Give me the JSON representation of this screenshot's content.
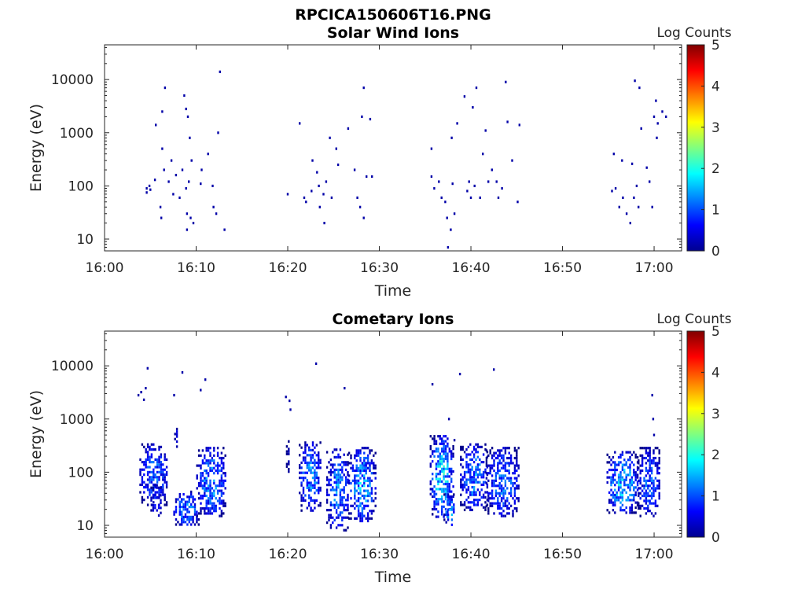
{
  "figure": {
    "title": "RPCICA150606T16.PNG"
  },
  "chart_data": [
    {
      "type": "heatmap",
      "title": "Solar Wind Ions",
      "xlabel": "Time",
      "ylabel": "Energy (eV)",
      "x_ticks": [
        "16:00",
        "16:10",
        "16:20",
        "16:30",
        "16:40",
        "16:50",
        "17:00"
      ],
      "y_scale": "log",
      "y_ticks": [
        "10",
        "100",
        "1000",
        "10000"
      ],
      "xlim_minutes": [
        0,
        63
      ],
      "ylim": [
        6,
        45000
      ],
      "colorbar": {
        "label": "Log Counts",
        "ticks": [
          "0",
          "1",
          "2",
          "3",
          "4",
          "5"
        ],
        "range": [
          0,
          5
        ],
        "colormap": "jet"
      },
      "points": [
        [
          4.6,
          90,
          0.2
        ],
        [
          4.6,
          75,
          0.2
        ],
        [
          4.9,
          100,
          0.2
        ],
        [
          5.0,
          85,
          0.2
        ],
        [
          5.5,
          130,
          0.2
        ],
        [
          5.6,
          1400,
          0.2
        ],
        [
          6.1,
          40,
          0.2
        ],
        [
          6.2,
          25,
          0.2
        ],
        [
          6.3,
          500,
          0.2
        ],
        [
          6.3,
          2500,
          0.2
        ],
        [
          6.6,
          7000,
          0.2
        ],
        [
          6.5,
          200,
          0.2
        ],
        [
          7.0,
          120,
          0.2
        ],
        [
          7.3,
          300,
          0.2
        ],
        [
          7.5,
          70,
          0.2
        ],
        [
          7.8,
          160,
          0.2
        ],
        [
          8.2,
          60,
          0.2
        ],
        [
          8.5,
          200,
          0.2
        ],
        [
          8.7,
          5000,
          0.2
        ],
        [
          8.9,
          2800,
          0.2
        ],
        [
          8.9,
          90,
          0.2
        ],
        [
          9.0,
          30,
          0.2
        ],
        [
          9.0,
          15,
          0.2
        ],
        [
          9.1,
          2000,
          0.2
        ],
        [
          9.2,
          120,
          0.2
        ],
        [
          9.3,
          800,
          0.2
        ],
        [
          9.5,
          300,
          0.2
        ],
        [
          9.4,
          25,
          0.2
        ],
        [
          9.7,
          20,
          0.2
        ],
        [
          10.6,
          200,
          0.2
        ],
        [
          10.5,
          110,
          0.2
        ],
        [
          11.3,
          400,
          0.2
        ],
        [
          11.8,
          100,
          0.2
        ],
        [
          11.9,
          40,
          0.2
        ],
        [
          12.2,
          30,
          0.2
        ],
        [
          12.4,
          1000,
          0.2
        ],
        [
          12.6,
          14000,
          0.2
        ],
        [
          13.1,
          15,
          0.2
        ],
        [
          20.0,
          70,
          0.2
        ],
        [
          21.3,
          1500,
          0.2
        ],
        [
          21.8,
          60,
          0.2
        ],
        [
          22.0,
          50,
          0.2
        ],
        [
          22.6,
          80,
          0.2
        ],
        [
          22.7,
          300,
          0.2
        ],
        [
          23.2,
          180,
          0.2
        ],
        [
          23.4,
          100,
          0.2
        ],
        [
          23.5,
          40,
          0.2
        ],
        [
          23.9,
          70,
          0.2
        ],
        [
          24.2,
          120,
          0.2
        ],
        [
          24.0,
          20,
          0.2
        ],
        [
          24.6,
          800,
          0.2
        ],
        [
          24.8,
          60,
          0.2
        ],
        [
          25.3,
          500,
          0.2
        ],
        [
          25.5,
          250,
          0.2
        ],
        [
          26.6,
          1200,
          0.2
        ],
        [
          27.3,
          200,
          0.2
        ],
        [
          27.6,
          60,
          0.2
        ],
        [
          27.9,
          40,
          0.2
        ],
        [
          28.1,
          2000,
          0.2
        ],
        [
          28.3,
          7000,
          0.2
        ],
        [
          28.6,
          150,
          0.2
        ],
        [
          28.3,
          25,
          0.2
        ],
        [
          29.0,
          1800,
          0.2
        ],
        [
          29.2,
          150,
          0.2
        ],
        [
          35.7,
          500,
          0.2
        ],
        [
          35.7,
          150,
          0.2
        ],
        [
          36.0,
          90,
          0.2
        ],
        [
          36.5,
          120,
          0.2
        ],
        [
          36.8,
          60,
          0.2
        ],
        [
          37.2,
          50,
          0.2
        ],
        [
          37.4,
          25,
          0.2
        ],
        [
          37.5,
          7,
          0.2
        ],
        [
          37.8,
          15,
          0.2
        ],
        [
          37.9,
          800,
          0.2
        ],
        [
          38.0,
          110,
          0.2
        ],
        [
          38.2,
          30,
          0.2
        ],
        [
          38.5,
          1500,
          0.2
        ],
        [
          39.3,
          4800,
          0.2
        ],
        [
          39.6,
          80,
          0.2
        ],
        [
          39.8,
          120,
          0.2
        ],
        [
          40.0,
          60,
          0.2
        ],
        [
          40.2,
          3000,
          0.2
        ],
        [
          40.4,
          100,
          0.2
        ],
        [
          40.6,
          7000,
          0.2
        ],
        [
          41.0,
          60,
          0.2
        ],
        [
          41.3,
          400,
          0.2
        ],
        [
          41.6,
          1100,
          0.2
        ],
        [
          41.9,
          120,
          0.2
        ],
        [
          42.3,
          200,
          0.2
        ],
        [
          42.8,
          120,
          0.2
        ],
        [
          43.0,
          60,
          0.2
        ],
        [
          43.4,
          90,
          0.2
        ],
        [
          43.8,
          9000,
          0.2
        ],
        [
          44.0,
          1600,
          0.2
        ],
        [
          44.5,
          300,
          0.2
        ],
        [
          45.1,
          50,
          0.2
        ],
        [
          45.3,
          1400,
          0.2
        ],
        [
          55.4,
          80,
          0.2
        ],
        [
          55.6,
          400,
          0.2
        ],
        [
          55.8,
          90,
          0.2
        ],
        [
          56.2,
          40,
          0.2
        ],
        [
          56.5,
          300,
          0.2
        ],
        [
          56.6,
          60,
          0.2
        ],
        [
          57.0,
          30,
          0.2
        ],
        [
          57.4,
          20,
          0.2
        ],
        [
          57.6,
          260,
          0.2
        ],
        [
          57.8,
          60,
          0.2
        ],
        [
          57.9,
          9500,
          0.2
        ],
        [
          58.4,
          7000,
          0.2
        ],
        [
          58.6,
          1200,
          0.2
        ],
        [
          58.1,
          100,
          0.2
        ],
        [
          58.3,
          40,
          0.2
        ],
        [
          59.2,
          220,
          0.2
        ],
        [
          59.5,
          120,
          0.2
        ],
        [
          59.8,
          40,
          0.2
        ],
        [
          60.0,
          2000,
          0.2
        ],
        [
          60.2,
          4000,
          0.2
        ],
        [
          60.4,
          1500,
          0.2
        ],
        [
          60.3,
          800,
          0.2
        ],
        [
          60.9,
          2500,
          0.2
        ],
        [
          61.3,
          2000,
          0.2
        ]
      ]
    },
    {
      "type": "heatmap",
      "title": "Cometary Ions",
      "xlabel": "Time",
      "ylabel": "Energy (eV)",
      "x_ticks": [
        "16:00",
        "16:10",
        "16:20",
        "16:30",
        "16:40",
        "16:50",
        "17:00"
      ],
      "y_scale": "log",
      "y_ticks": [
        "10",
        "100",
        "1000",
        "10000"
      ],
      "xlim_minutes": [
        0,
        63
      ],
      "ylim": [
        6,
        45000
      ],
      "colorbar": {
        "label": "Log Counts",
        "ticks": [
          "0",
          "1",
          "2",
          "3",
          "4",
          "5"
        ],
        "range": [
          0,
          5
        ],
        "colormap": "jet"
      },
      "clusters": [
        {
          "t0": 3.8,
          "t1": 6.8,
          "e0": 25,
          "e1": 350,
          "peak": 1.4
        },
        {
          "t0": 5.0,
          "t1": 6.2,
          "e0": 15,
          "e1": 60,
          "peak": 0.9
        },
        {
          "t0": 7.5,
          "t1": 10.2,
          "e0": 10,
          "e1": 45,
          "peak": 1.7
        },
        {
          "t0": 7.6,
          "t1": 8.0,
          "e0": 300,
          "e1": 850,
          "peak": 0.5
        },
        {
          "t0": 10.0,
          "t1": 13.2,
          "e0": 15,
          "e1": 300,
          "peak": 1.6
        },
        {
          "t0": 19.8,
          "t1": 20.2,
          "e0": 100,
          "e1": 400,
          "peak": 0.3
        },
        {
          "t0": 21.2,
          "t1": 23.6,
          "e0": 20,
          "e1": 380,
          "peak": 1.6
        },
        {
          "t0": 24.2,
          "t1": 26.6,
          "e0": 8,
          "e1": 280,
          "peak": 1.5
        },
        {
          "t0": 26.6,
          "t1": 29.5,
          "e0": 12,
          "e1": 300,
          "peak": 1.8
        },
        {
          "t0": 35.5,
          "t1": 38.0,
          "e0": 15,
          "e1": 500,
          "peak": 2.1
        },
        {
          "t0": 37.0,
          "t1": 38.2,
          "e0": 10,
          "e1": 40,
          "peak": 1.8
        },
        {
          "t0": 38.8,
          "t1": 41.8,
          "e0": 20,
          "e1": 350,
          "peak": 1.6
        },
        {
          "t0": 41.6,
          "t1": 45.2,
          "e0": 15,
          "e1": 300,
          "peak": 1.4
        },
        {
          "t0": 54.8,
          "t1": 58.2,
          "e0": 18,
          "e1": 250,
          "peak": 2.0
        },
        {
          "t0": 58.2,
          "t1": 60.6,
          "e0": 15,
          "e1": 300,
          "peak": 1.3
        }
      ],
      "points": [
        [
          3.7,
          2800,
          0.2
        ],
        [
          4.0,
          3200,
          0.2
        ],
        [
          4.3,
          2300,
          0.2
        ],
        [
          4.5,
          3800,
          0.2
        ],
        [
          4.7,
          9000,
          0.2
        ],
        [
          7.6,
          2800,
          0.2
        ],
        [
          8.5,
          7500,
          0.2
        ],
        [
          10.5,
          3500,
          0.2
        ],
        [
          11.0,
          5500,
          0.2
        ],
        [
          19.8,
          2600,
          0.2
        ],
        [
          20.2,
          2200,
          0.2
        ],
        [
          20.3,
          1500,
          0.2
        ],
        [
          23.1,
          11000,
          0.2
        ],
        [
          26.2,
          3800,
          0.2
        ],
        [
          35.8,
          4500,
          0.2
        ],
        [
          37.6,
          1000,
          0.2
        ],
        [
          38.2,
          400,
          0.2
        ],
        [
          38.8,
          7000,
          0.2
        ],
        [
          42.5,
          8500,
          0.2
        ],
        [
          59.8,
          2800,
          0.2
        ],
        [
          59.9,
          1000,
          0.2
        ],
        [
          60.0,
          500,
          0.2
        ]
      ]
    }
  ]
}
